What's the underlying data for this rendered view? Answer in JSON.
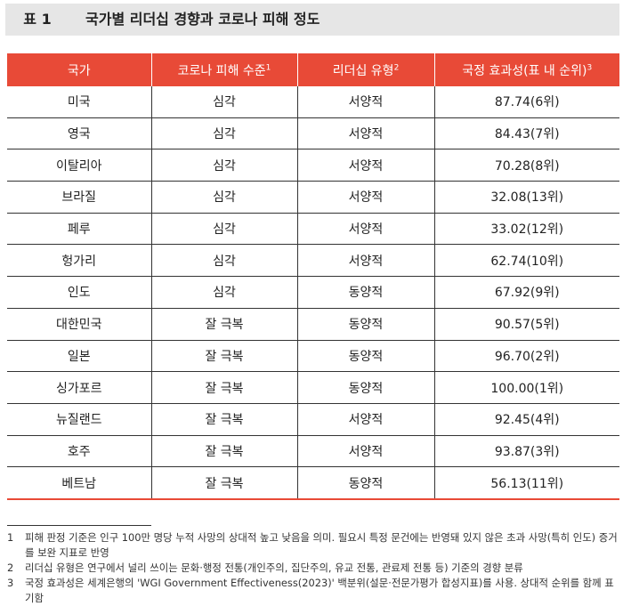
{
  "title": {
    "number": "표 1",
    "text": "국가별 리더십 경향과 코로나 피해 정도"
  },
  "table": {
    "headers": [
      {
        "label": "국가",
        "sup": ""
      },
      {
        "label": "코로나 피해 수준",
        "sup": "1"
      },
      {
        "label": "리더십 유형",
        "sup": "2"
      },
      {
        "label": "국정 효과성(표 내 순위)",
        "sup": "3"
      }
    ],
    "rows": [
      [
        "미국",
        "심각",
        "서양적",
        "87.74(6위)"
      ],
      [
        "영국",
        "심각",
        "서양적",
        "84.43(7위)"
      ],
      [
        "이탈리아",
        "심각",
        "서양적",
        "70.28(8위)"
      ],
      [
        "브라질",
        "심각",
        "서양적",
        "32.08(13위)"
      ],
      [
        "페루",
        "심각",
        "서양적",
        "33.02(12위)"
      ],
      [
        "헝가리",
        "심각",
        "서양적",
        "62.74(10위)"
      ],
      [
        "인도",
        "심각",
        "동양적",
        "67.92(9위)"
      ],
      [
        "대한민국",
        "잘 극복",
        "동양적",
        "90.57(5위)"
      ],
      [
        "일본",
        "잘 극복",
        "동양적",
        "96.70(2위)"
      ],
      [
        "싱가포르",
        "잘 극복",
        "동양적",
        "100.00(1위)"
      ],
      [
        "뉴질랜드",
        "잘 극복",
        "서양적",
        "92.45(4위)"
      ],
      [
        "호주",
        "잘 극복",
        "서양적",
        "93.87(3위)"
      ],
      [
        "베트남",
        "잘 극복",
        "동양적",
        "56.13(11위)"
      ]
    ]
  },
  "notes": [
    {
      "num": "1",
      "text": "피해 판정 기준은 인구 100만 명당 누적 사망의 상대적 높고 낮음을 의미. 필요시 특정 문건에는 반영돼 있지 않은 초과 사망(특히 인도) 증거를 보완 지표로 반영"
    },
    {
      "num": "2",
      "text": "리더십 유형은 연구에서 널리 쓰이는 문화·행정 전통(개인주의, 집단주의, 유교 전통, 관료제 전통 등) 기준의 경향 분류"
    },
    {
      "num": "3",
      "text": "국정 효과성은 세계은행의 'WGI Government Effectiveness(2023)' 백분위(설문·전문가평가 합성지표)를 사용. 상대적 순위를 함께 표기함"
    }
  ],
  "colors": {
    "header_bg": "#e84a37",
    "title_bar_bg": "#e6e6e6"
  }
}
